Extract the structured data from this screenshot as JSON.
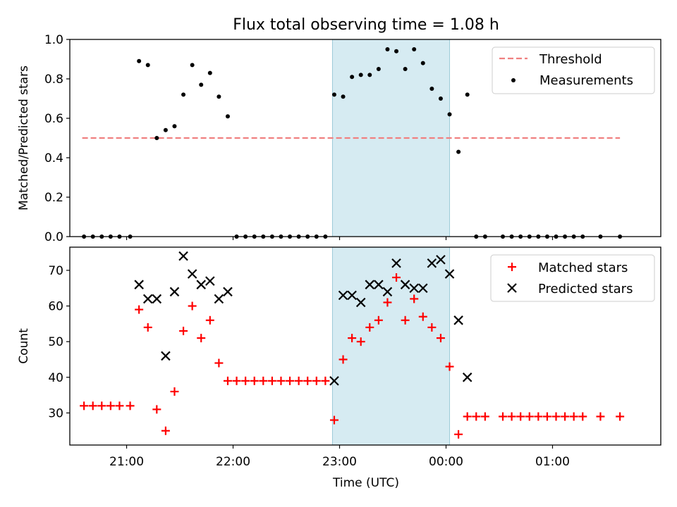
{
  "title": "Flux total observing time = 1.08 h",
  "xlabel": "Time (UTC)",
  "x_tick_labels": [
    "21:00",
    "22:00",
    "23:00",
    "00:00",
    "01:00"
  ],
  "colors": {
    "threshold": "#f08080",
    "measurements": "#000000",
    "matched": "#ff0000",
    "predicted": "#000000",
    "highlight": "#add8e6"
  },
  "chart_data": [
    {
      "type": "scatter",
      "ylabel": "Matched/Predicted stars",
      "ylim": [
        0,
        1.0
      ],
      "y_ticks": [
        "0.0",
        "0.2",
        "0.4",
        "0.6",
        "0.8",
        "1.0"
      ],
      "xlim": [
        "20:28",
        "02:01"
      ],
      "highlight_span": [
        "22:56",
        "00:02"
      ],
      "legend_position": "upper right",
      "threshold": {
        "name": "Threshold",
        "y": 0.5,
        "x_range": [
          "20:35",
          "01:38"
        ],
        "style": "dashed"
      },
      "series": [
        {
          "name": "Measurements",
          "marker": "dot",
          "x": [
            "20:36",
            "20:41",
            "20:46",
            "20:51",
            "20:56",
            "21:02",
            "21:07",
            "21:12",
            "21:17",
            "21:22",
            "21:27",
            "21:32",
            "21:37",
            "21:42",
            "21:47",
            "21:52",
            "21:57",
            "22:02",
            "22:07",
            "22:12",
            "22:17",
            "22:22",
            "22:27",
            "22:32",
            "22:37",
            "22:42",
            "22:47",
            "22:52",
            "22:57",
            "23:02",
            "23:07",
            "23:12",
            "23:17",
            "23:22",
            "23:27",
            "23:32",
            "23:37",
            "23:42",
            "23:47",
            "23:52",
            "23:57",
            "00:02",
            "00:07",
            "00:12",
            "00:17",
            "00:22",
            "00:32",
            "00:37",
            "00:42",
            "00:47",
            "00:52",
            "00:57",
            "01:02",
            "01:07",
            "01:12",
            "01:17",
            "01:27",
            "01:38"
          ],
          "y": [
            0,
            0,
            0,
            0,
            0,
            0,
            0.89,
            0.87,
            0.5,
            0.54,
            0.56,
            0.72,
            0.87,
            0.77,
            0.83,
            0.71,
            0.61,
            0,
            0,
            0,
            0,
            0,
            0,
            0,
            0,
            0,
            0,
            0,
            0.72,
            0.71,
            0.81,
            0.82,
            0.82,
            0.85,
            0.95,
            0.94,
            0.85,
            0.95,
            0.88,
            0.75,
            0.7,
            0.62,
            0.43,
            0.72,
            0,
            0,
            0,
            0,
            0,
            0,
            0,
            0,
            0,
            0,
            0,
            0,
            0,
            0
          ]
        }
      ]
    },
    {
      "type": "scatter",
      "ylabel": "Count",
      "ylim": [
        21,
        76.5
      ],
      "y_ticks": [
        "30",
        "40",
        "50",
        "60",
        "70"
      ],
      "xlim": [
        "20:28",
        "02:01"
      ],
      "highlight_span": [
        "22:56",
        "00:02"
      ],
      "legend_position": "upper right",
      "series": [
        {
          "name": "Matched stars",
          "marker": "plus",
          "x": [
            "20:36",
            "20:41",
            "20:46",
            "20:51",
            "20:56",
            "21:02",
            "21:07",
            "21:12",
            "21:17",
            "21:22",
            "21:27",
            "21:32",
            "21:37",
            "21:42",
            "21:47",
            "21:52",
            "21:57",
            "22:02",
            "22:07",
            "22:12",
            "22:17",
            "22:22",
            "22:27",
            "22:32",
            "22:37",
            "22:42",
            "22:47",
            "22:52",
            "22:57",
            "23:02",
            "23:07",
            "23:12",
            "23:17",
            "23:22",
            "23:27",
            "23:32",
            "23:37",
            "23:42",
            "23:47",
            "23:52",
            "23:57",
            "00:02",
            "00:07",
            "00:12",
            "00:17",
            "00:22",
            "00:32",
            "00:37",
            "00:42",
            "00:47",
            "00:52",
            "00:57",
            "01:02",
            "01:07",
            "01:12",
            "01:17",
            "01:27",
            "01:38"
          ],
          "y": [
            32,
            32,
            32,
            32,
            32,
            32,
            59,
            54,
            31,
            25,
            36,
            53,
            60,
            51,
            56,
            44,
            39,
            39,
            39,
            39,
            39,
            39,
            39,
            39,
            39,
            39,
            39,
            39,
            28,
            45,
            51,
            50,
            54,
            56,
            61,
            68,
            56,
            62,
            57,
            54,
            51,
            43,
            24,
            29,
            29,
            29,
            29,
            29,
            29,
            29,
            29,
            29,
            29,
            29,
            29,
            29,
            29,
            29
          ]
        },
        {
          "name": "Predicted stars",
          "marker": "x",
          "x": [
            "21:07",
            "21:12",
            "21:17",
            "21:22",
            "21:27",
            "21:32",
            "21:37",
            "21:42",
            "21:47",
            "21:52",
            "21:57",
            "22:57",
            "23:02",
            "23:07",
            "23:12",
            "23:17",
            "23:22",
            "23:27",
            "23:32",
            "23:37",
            "23:42",
            "23:47",
            "23:52",
            "23:57",
            "00:02",
            "00:07",
            "00:12"
          ],
          "y": [
            66,
            62,
            62,
            46,
            64,
            74,
            69,
            66,
            67,
            62,
            64,
            39,
            63,
            63,
            61,
            66,
            66,
            64,
            72,
            66,
            65,
            65,
            72,
            73,
            69,
            56,
            40
          ]
        }
      ]
    }
  ]
}
